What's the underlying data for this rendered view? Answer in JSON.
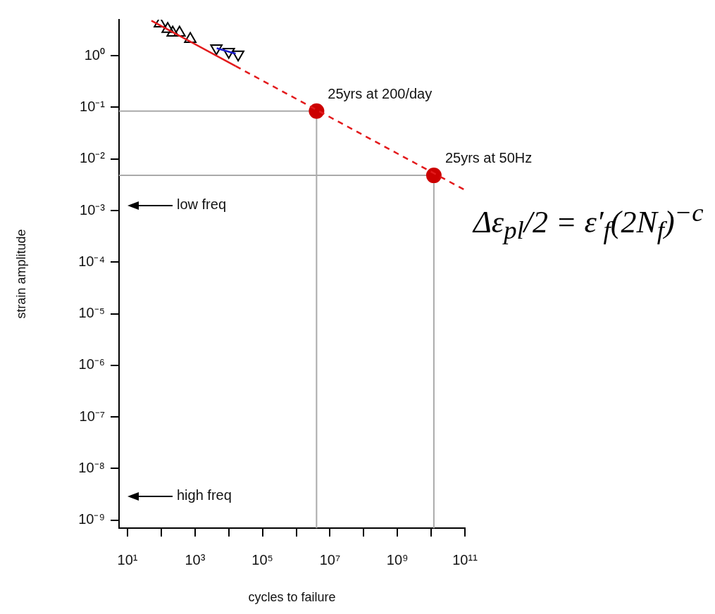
{
  "chart_data": {
    "type": "scatter",
    "xlabel": "cycles to failure",
    "ylabel": "strain amplitude",
    "log": "xy",
    "grid": false,
    "legend": false,
    "xlim": [
      5.6,
      100000000000.0
    ],
    "ylim": [
      7e-10,
      5
    ],
    "xticks": [
      {
        "value": 10,
        "label": "10¹"
      },
      {
        "value": 100,
        "label": null
      },
      {
        "value": 1000,
        "label": "10³"
      },
      {
        "value": 10000,
        "label": null
      },
      {
        "value": 100000,
        "label": "10⁵"
      },
      {
        "value": 1000000,
        "label": null
      },
      {
        "value": 10000000,
        "label": "10⁷"
      },
      {
        "value": 100000000,
        "label": null
      },
      {
        "value": 1000000000,
        "label": "10⁹"
      },
      {
        "value": 10000000000,
        "label": null
      },
      {
        "value": 100000000000,
        "label": "10¹¹"
      }
    ],
    "yticks": [
      {
        "value": 1,
        "label": "10⁰"
      },
      {
        "value": 0.1,
        "label": "10⁻¹"
      },
      {
        "value": 0.01,
        "label": "10⁻²"
      },
      {
        "value": 0.001,
        "label": "10⁻³"
      },
      {
        "value": 0.0001,
        "label": "10⁻⁴"
      },
      {
        "value": 1e-05,
        "label": "10⁻⁵"
      },
      {
        "value": 1e-06,
        "label": "10⁻⁶"
      },
      {
        "value": 1e-07,
        "label": "10⁻⁷"
      },
      {
        "value": 1e-08,
        "label": "10⁻⁸"
      },
      {
        "value": 1e-09,
        "label": "10⁻⁹"
      }
    ],
    "series": [
      {
        "type": "line",
        "color": "#e31a1c",
        "line_style": "solid",
        "marker": "none",
        "x": [
          51,
          16000
        ],
        "values": [
          4.8,
          0.63
        ]
      },
      {
        "type": "line",
        "color": "#e31a1c",
        "line_style": "dashed",
        "marker": "none",
        "x": [
          16000,
          100000000000
        ],
        "values": [
          0.63,
          0.0025
        ]
      },
      {
        "type": "line",
        "color": "#1a1acc",
        "line_style": "solid",
        "marker": "none",
        "x": [
          4400,
          16000
        ],
        "values": [
          1.4,
          1.1
        ]
      },
      {
        "color": "#000000",
        "marker": "triangle",
        "x": [
          91,
          155,
          218,
          347,
          724
        ],
        "values": [
          4.2,
          3.3,
          2.8,
          2.8,
          2.1
        ]
      },
      {
        "color": "#000000",
        "marker": "triangle-down",
        "x": [
          4300,
          10000,
          19000
        ],
        "values": [
          1.4,
          1.2,
          1.06
        ]
      },
      {
        "color": "#cc0000",
        "marker": "circle",
        "x": [
          4000000,
          12000000000
        ],
        "values": [
          0.085,
          0.0048
        ]
      }
    ],
    "ref_lines": [
      {
        "axis": "y",
        "value": 0.085,
        "color": "#aaaaaa"
      },
      {
        "axis": "x",
        "value": 4000000,
        "color": "#aaaaaa"
      },
      {
        "axis": "y",
        "value": 0.0048,
        "color": "#aaaaaa"
      },
      {
        "axis": "x",
        "value": 12000000000,
        "color": "#aaaaaa"
      }
    ],
    "annotations": [
      {
        "text": "25yrs at 200/day",
        "x": 4000000,
        "y": 0.085
      },
      {
        "text": "25yrs at 50Hz",
        "x": 12000000000,
        "y": 0.0048
      },
      "low freq",
      "high freq",
      "Δε$_{pl}$/2 = ε′$_{f}$(2N$_{f}$)$^{−c}$"
    ]
  }
}
